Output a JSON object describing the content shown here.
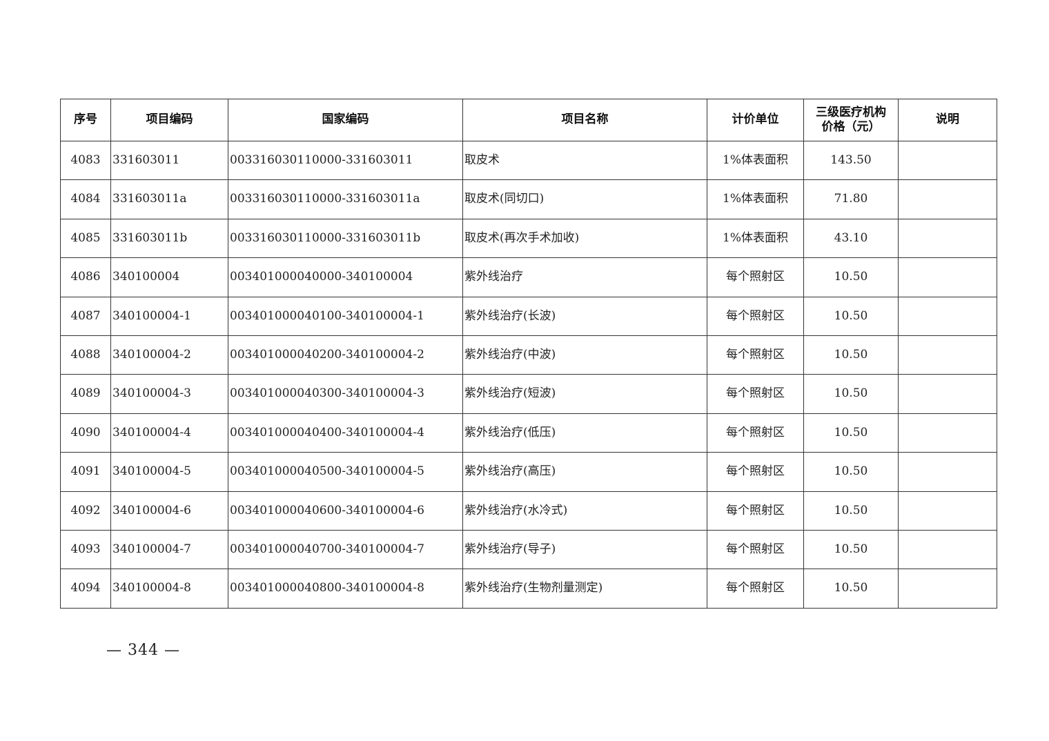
{
  "table": {
    "headers": [
      "序号",
      "项目编码",
      "国家编码",
      "项目名称",
      "计价单位",
      "三级医疗机构价格（元）",
      "说明"
    ],
    "header_price_line1": "三级医疗机构",
    "header_price_line2": "价格（元）",
    "rows": [
      [
        "4083",
        "331603011",
        "003316030110000-331603011",
        "取皮术",
        "1%体表面积",
        "143.50",
        ""
      ],
      [
        "4084",
        "331603011a",
        "003316030110000-331603011a",
        "取皮术(同切口)",
        "1%体表面积",
        "71.80",
        ""
      ],
      [
        "4085",
        "331603011b",
        "003316030110000-331603011b",
        "取皮术(再次手术加收)",
        "1%体表面积",
        "43.10",
        ""
      ],
      [
        "4086",
        "340100004",
        "003401000040000-340100004",
        "紫外线治疗",
        "每个照射区",
        "10.50",
        ""
      ],
      [
        "4087",
        "340100004-1",
        "003401000040100-340100004-1",
        "紫外线治疗(长波)",
        "每个照射区",
        "10.50",
        ""
      ],
      [
        "4088",
        "340100004-2",
        "003401000040200-340100004-2",
        "紫外线治疗(中波)",
        "每个照射区",
        "10.50",
        ""
      ],
      [
        "4089",
        "340100004-3",
        "003401000040300-340100004-3",
        "紫外线治疗(短波)",
        "每个照射区",
        "10.50",
        ""
      ],
      [
        "4090",
        "340100004-4",
        "003401000040400-340100004-4",
        "紫外线治疗(低压)",
        "每个照射区",
        "10.50",
        ""
      ],
      [
        "4091",
        "340100004-5",
        "003401000040500-340100004-5",
        "紫外线治疗(高压)",
        "每个照射区",
        "10.50",
        ""
      ],
      [
        "4092",
        "340100004-6",
        "003401000040600-340100004-6",
        "紫外线治疗(水冷式)",
        "每个照射区",
        "10.50",
        ""
      ],
      [
        "4093",
        "340100004-7",
        "003401000040700-340100004-7",
        "紫外线治疗(导子)",
        "每个照射区",
        "10.50",
        ""
      ],
      [
        "4094",
        "340100004-8",
        "003401000040800-340100004-8",
        "紫外线治疗(生物剂量测定)",
        "每个照射区",
        "10.50",
        ""
      ]
    ]
  },
  "page_number": "— 344 —"
}
